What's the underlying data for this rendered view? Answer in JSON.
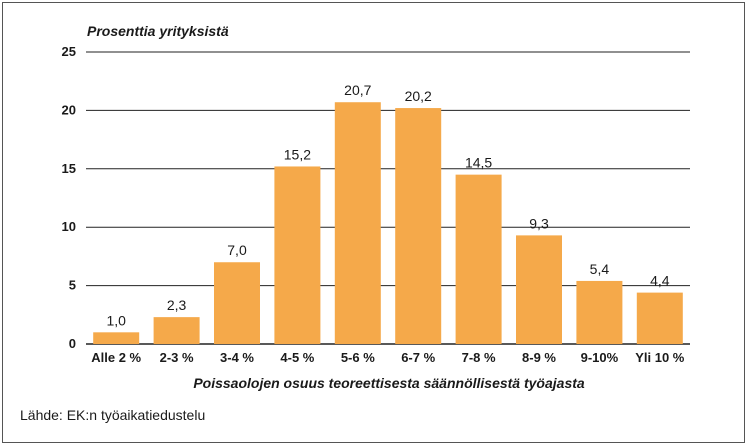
{
  "chart_data": {
    "type": "bar",
    "ylabel": "Prosenttia yrityksistä",
    "xlabel": "Poissaolojen osuus teoreettisesta säännöllisestä työajasta",
    "categories": [
      "Alle 2 %",
      "2-3 %",
      "3-4 %",
      "4-5 %",
      "5-6 %",
      "6-7 %",
      "7-8 %",
      "8-9 %",
      "9-10%",
      "Yli 10 %"
    ],
    "values": [
      1.0,
      2.3,
      7.0,
      15.2,
      20.7,
      20.2,
      14.5,
      9.3,
      5.4,
      4.4
    ],
    "value_labels": [
      "1,0",
      "2,3",
      "7,0",
      "15,2",
      "20,7",
      "20,2",
      "14,5",
      "9,3",
      "5,4",
      "4,4"
    ],
    "ylim": [
      0,
      25
    ],
    "yticks": [
      0,
      5,
      10,
      15,
      20,
      25
    ],
    "grid": true,
    "bar_color": "#f5a94a"
  },
  "source": "Lähde: EK:n työaikatiedustelu"
}
